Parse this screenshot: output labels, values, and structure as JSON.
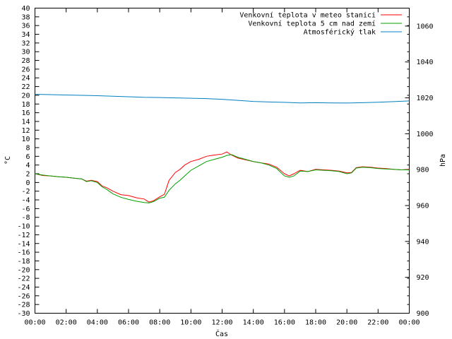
{
  "chart_data": {
    "type": "line",
    "xlabel": "Čas",
    "ylabel_left": "°C",
    "ylabel_right": "hPa",
    "x_ticks": [
      "00:00",
      "02:00",
      "04:00",
      "06:00",
      "08:00",
      "10:00",
      "12:00",
      "14:00",
      "16:00",
      "18:00",
      "20:00",
      "22:00",
      "00:00"
    ],
    "x_range": [
      0,
      24
    ],
    "y_left_range": [
      -30,
      40
    ],
    "y_left_step": 2,
    "y_right_range": [
      900,
      1070
    ],
    "y_right_ticks": [
      900,
      920,
      940,
      960,
      980,
      1000,
      1020,
      1040,
      1060
    ],
    "grid": false,
    "legend_position": "top-right",
    "series": [
      {
        "name": "Venkovní teplota v meteo stanici",
        "axis": "left",
        "color": "#ff0000",
        "x": [
          0,
          0.5,
          1,
          1.5,
          2,
          2.5,
          3,
          3.3,
          3.6,
          4,
          4.3,
          4.6,
          5,
          5.5,
          6,
          6.5,
          7,
          7.3,
          7.6,
          8,
          8.3,
          8.6,
          9,
          9.3,
          9.6,
          10,
          10.5,
          11,
          11.5,
          12,
          12.3,
          12.6,
          13,
          13.5,
          14,
          14.5,
          15,
          15.5,
          16,
          16.3,
          16.6,
          17,
          17.5,
          18,
          18.5,
          19,
          19.5,
          20,
          20.3,
          20.6,
          21,
          21.5,
          22,
          22.5,
          23,
          23.5,
          24
        ],
        "y": [
          2.0,
          1.6,
          1.5,
          1.3,
          1.2,
          1.0,
          0.8,
          0.3,
          0.5,
          0.2,
          -0.8,
          -1.2,
          -2.0,
          -2.8,
          -3.0,
          -3.5,
          -3.8,
          -4.5,
          -4.2,
          -3.3,
          -2.7,
          0.5,
          2.3,
          3.0,
          4.0,
          4.8,
          5.3,
          6.0,
          6.3,
          6.5,
          7.0,
          6.3,
          5.6,
          5.2,
          4.8,
          4.5,
          4.2,
          3.5,
          2.0,
          1.5,
          2.0,
          2.8,
          2.5,
          3.0,
          2.9,
          2.8,
          2.6,
          2.2,
          2.3,
          3.4,
          3.6,
          3.5,
          3.3,
          3.2,
          3.0,
          2.9,
          3.0
        ]
      },
      {
        "name": "Venkovní teplota 5 cm nad zemí",
        "axis": "left",
        "color": "#00a000",
        "x": [
          0,
          0.5,
          1,
          1.5,
          2,
          2.5,
          3,
          3.3,
          3.6,
          4,
          4.3,
          4.6,
          5,
          5.5,
          6,
          6.5,
          7,
          7.3,
          7.6,
          8,
          8.3,
          8.6,
          9,
          9.3,
          9.6,
          10,
          10.5,
          11,
          11.5,
          12,
          12.3,
          12.6,
          13,
          13.5,
          14,
          14.5,
          15,
          15.5,
          16,
          16.3,
          16.6,
          17,
          17.5,
          18,
          18.5,
          19,
          19.5,
          20,
          20.3,
          20.6,
          21,
          21.5,
          22,
          22.5,
          23,
          23.5,
          24
        ],
        "y": [
          2.0,
          1.7,
          1.5,
          1.3,
          1.2,
          1.0,
          0.8,
          0.2,
          0.4,
          0.0,
          -1.0,
          -1.6,
          -2.6,
          -3.4,
          -3.9,
          -4.3,
          -4.6,
          -4.7,
          -4.4,
          -3.6,
          -3.4,
          -1.8,
          -0.3,
          0.5,
          1.5,
          2.8,
          3.8,
          4.8,
          5.3,
          5.8,
          6.2,
          6.4,
          5.8,
          5.3,
          4.8,
          4.5,
          4.0,
          3.2,
          1.5,
          1.2,
          1.5,
          2.6,
          2.5,
          2.9,
          2.8,
          2.7,
          2.5,
          2.0,
          2.2,
          3.3,
          3.5,
          3.4,
          3.2,
          3.1,
          3.0,
          2.9,
          2.9
        ]
      },
      {
        "name": "Atmosférický tlak",
        "axis": "right",
        "color": "#0080c0",
        "x": [
          0,
          1,
          2,
          3,
          4,
          5,
          6,
          7,
          8,
          9,
          10,
          11,
          12,
          13,
          14,
          15,
          16,
          17,
          18,
          19,
          20,
          21,
          22,
          23,
          24
        ],
        "y": [
          1022.0,
          1021.8,
          1021.6,
          1021.4,
          1021.2,
          1020.9,
          1020.6,
          1020.3,
          1020.2,
          1020.0,
          1019.8,
          1019.6,
          1019.2,
          1018.6,
          1018.0,
          1017.7,
          1017.5,
          1017.2,
          1017.3,
          1017.2,
          1017.1,
          1017.3,
          1017.6,
          1017.9,
          1018.3
        ]
      }
    ]
  }
}
